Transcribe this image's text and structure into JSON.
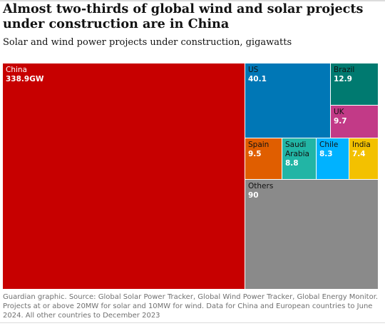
{
  "title": "Almost two-thirds of global wind and solar projects under construction are in China",
  "subtitle": "Solar and wind power projects under construction, gigawatts",
  "footer": "Guardian graphic. Source: Global Solar Power Tracker, Global Wind Power Tracker, Global Energy Monitor. Projects at or above 20MW for solar and 10MW for wind. Data for China and European countries to June 2024. All other countries to December 2023",
  "chart_data": {
    "type": "treemap",
    "title": "Almost two-thirds of global wind and solar projects under construction are in China",
    "subtitle": "Solar and wind power projects under construction, gigawatts",
    "unit": "gigawatts",
    "items": [
      {
        "key": "china",
        "name": "China",
        "value": 338.9,
        "value_label": "338.9GW",
        "color": "#c70000",
        "text_color": "#ffffff"
      },
      {
        "key": "us",
        "name": "US",
        "value": 40.1,
        "value_label": "40.1",
        "color": "#0077b6",
        "text_color": "#ffffff"
      },
      {
        "key": "brazil",
        "name": "Brazil",
        "value": 12.9,
        "value_label": "12.9",
        "color": "#007a70",
        "text_color": "#ffffff"
      },
      {
        "key": "uk",
        "name": "UK",
        "value": 9.7,
        "value_label": "9.7",
        "color": "#c23a87",
        "text_color": "#ffffff"
      },
      {
        "key": "spain",
        "name": "Spain",
        "value": 9.5,
        "value_label": "9.5",
        "color": "#e05e00",
        "text_color": "#ffffff"
      },
      {
        "key": "saudi",
        "name": "Saudi Arabia",
        "value": 8.8,
        "value_label": "8.8",
        "color": "#22b5a5",
        "text_color": "#ffffff"
      },
      {
        "key": "chile",
        "name": "Chile",
        "value": 8.3,
        "value_label": "8.3",
        "color": "#00b2ff",
        "text_color": "#ffffff"
      },
      {
        "key": "india",
        "name": "India",
        "value": 7.4,
        "value_label": "7.4",
        "color": "#f3c100",
        "text_color": "#ffffff"
      },
      {
        "key": "others",
        "name": "Others",
        "value": 90,
        "value_label": "90",
        "color": "#8a8a8a",
        "text_color": "#ffffff"
      }
    ]
  }
}
